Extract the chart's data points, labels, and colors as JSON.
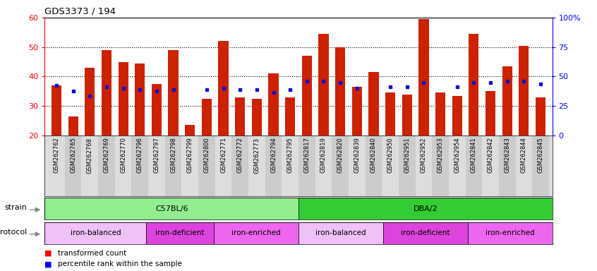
{
  "title": "GDS3373 / 194",
  "samples": [
    "GSM262762",
    "GSM262765",
    "GSM262768",
    "GSM262769",
    "GSM262770",
    "GSM262796",
    "GSM262797",
    "GSM262798",
    "GSM262799",
    "GSM262800",
    "GSM262771",
    "GSM262772",
    "GSM262773",
    "GSM262794",
    "GSM262795",
    "GSM262817",
    "GSM262819",
    "GSM262820",
    "GSM262839",
    "GSM262840",
    "GSM262950",
    "GSM262951",
    "GSM262952",
    "GSM262953",
    "GSM262954",
    "GSM262841",
    "GSM262842",
    "GSM262843",
    "GSM262844",
    "GSM262845"
  ],
  "red_values": [
    37.0,
    26.5,
    43.0,
    49.0,
    45.0,
    44.5,
    37.5,
    49.0,
    23.5,
    32.5,
    52.0,
    33.0,
    32.5,
    41.0,
    33.0,
    47.0,
    54.5,
    50.0,
    36.5,
    41.5,
    34.5,
    34.0,
    59.5,
    34.5,
    33.5,
    54.5,
    35.0,
    43.5,
    50.5,
    33.0
  ],
  "blue_values": [
    37.0,
    35.0,
    33.5,
    36.5,
    36.0,
    35.5,
    35.0,
    35.5,
    null,
    35.5,
    36.0,
    35.5,
    35.5,
    34.5,
    35.5,
    38.5,
    38.5,
    38.0,
    36.0,
    null,
    36.5,
    36.5,
    38.0,
    null,
    36.5,
    38.0,
    38.0,
    38.5,
    38.5,
    37.5
  ],
  "ylim": [
    20,
    60
  ],
  "yticks_left": [
    20,
    30,
    40,
    50,
    60
  ],
  "yticks_right_vals": [
    0,
    25,
    50,
    75,
    100
  ],
  "yticks_right_labels": [
    "0",
    "25",
    "50",
    "75",
    "100%"
  ],
  "strain_groups": [
    {
      "label": "C57BL/6",
      "start": 0,
      "end": 15,
      "color": "#90ee90"
    },
    {
      "label": "DBA/2",
      "start": 15,
      "end": 30,
      "color": "#33cc33"
    }
  ],
  "protocol_groups": [
    {
      "label": "iron-balanced",
      "start": 0,
      "end": 6,
      "color": "#f0c0f0"
    },
    {
      "label": "iron-deficient",
      "start": 6,
      "end": 10,
      "color": "#cc44cc"
    },
    {
      "label": "iron-enriched",
      "start": 10,
      "end": 15,
      "color": "#ee66ee"
    },
    {
      "label": "iron-balanced",
      "start": 15,
      "end": 20,
      "color": "#f0c0f0"
    },
    {
      "label": "iron-deficient",
      "start": 20,
      "end": 25,
      "color": "#cc44cc"
    },
    {
      "label": "iron-enriched",
      "start": 25,
      "end": 30,
      "color": "#ee66ee"
    }
  ],
  "bar_color": "#cc2200",
  "dot_color": "#1111cc"
}
